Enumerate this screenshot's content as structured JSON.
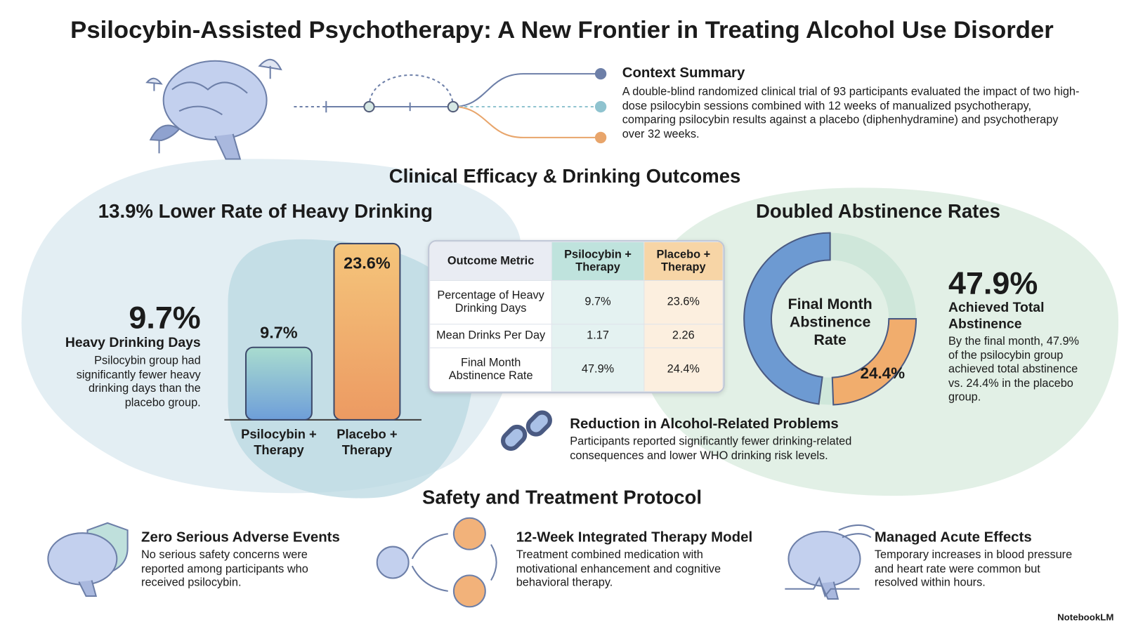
{
  "title": "Psilocybin-Assisted Psychotherapy: A New Frontier in Treating Alcohol Use Disorder",
  "context": {
    "heading": "Context Summary",
    "text": "A double-blind randomized clinical trial of 93 participants evaluated the impact of two high-dose psilocybin sessions combined with 12 weeks of manualized psychotherapy, comparing psilocybin results against a placebo (diphenhydramine) and psychotherapy over 32 weeks."
  },
  "efficacy_heading": "Clinical Efficacy & Drinking Outcomes",
  "heavy_drinking": {
    "heading": "13.9% Lower Rate of Heavy Drinking",
    "stat": "9.7%",
    "stat_label": "Heavy Drinking Days",
    "text": "Psilocybin group had significantly fewer heavy drinking days than the placebo group.",
    "chart": {
      "type": "bar",
      "categories": [
        "Psilocybin + Therapy",
        "Placebo + Therapy"
      ],
      "values": [
        9.7,
        23.6
      ],
      "value_labels": [
        "9.7%",
        "23.6%"
      ],
      "colors": [
        [
          "#a9dccf",
          "#6e9ed9"
        ],
        [
          "#f5c57b",
          "#ec9a62"
        ]
      ]
    }
  },
  "table": {
    "header": [
      "Outcome Metric",
      "Psilocybin + Therapy",
      "Placebo + Therapy"
    ],
    "rows": [
      [
        "Percentage of Heavy Drinking Days",
        "9.7%",
        "23.6%"
      ],
      [
        "Mean Drinks Per Day",
        "1.17",
        "2.26"
      ],
      [
        "Final Month Abstinence Rate",
        "47.9%",
        "24.4%"
      ]
    ]
  },
  "abstinence": {
    "heading": "Doubled Abstinence Rates",
    "chart": {
      "type": "donut",
      "center_label": "Final Month Abstinence Rate",
      "values": [
        47.9,
        24.4
      ],
      "value_labels": [
        "47.9%",
        "24.4%"
      ],
      "colors": [
        "#6d9ad2",
        "#f1ad6d"
      ],
      "track_color": "#cfe7da"
    },
    "stat_label": "Achieved Total Abstinence",
    "text": "By the final month, 47.9% of the psilocybin group achieved total abstinence vs. 24.4% in the placebo group."
  },
  "reduction": {
    "heading": "Reduction in Alcohol-Related Problems",
    "text": "Participants reported significantly fewer drinking-related consequences and lower WHO drinking risk levels."
  },
  "safety": {
    "heading": "Safety and Treatment Protocol",
    "items": [
      {
        "title": "Zero Serious Adverse Events",
        "text": "No serious safety concerns were reported among participants who received psilocybin."
      },
      {
        "title": "12-Week Integrated Therapy Model",
        "text": "Treatment combined medication with motivational enhancement and cognitive behavioral therapy."
      },
      {
        "title": "Managed Acute Effects",
        "text": "Temporary increases in blood pressure and heart rate were common but resolved within hours."
      }
    ]
  },
  "footer": "NotebookLM"
}
